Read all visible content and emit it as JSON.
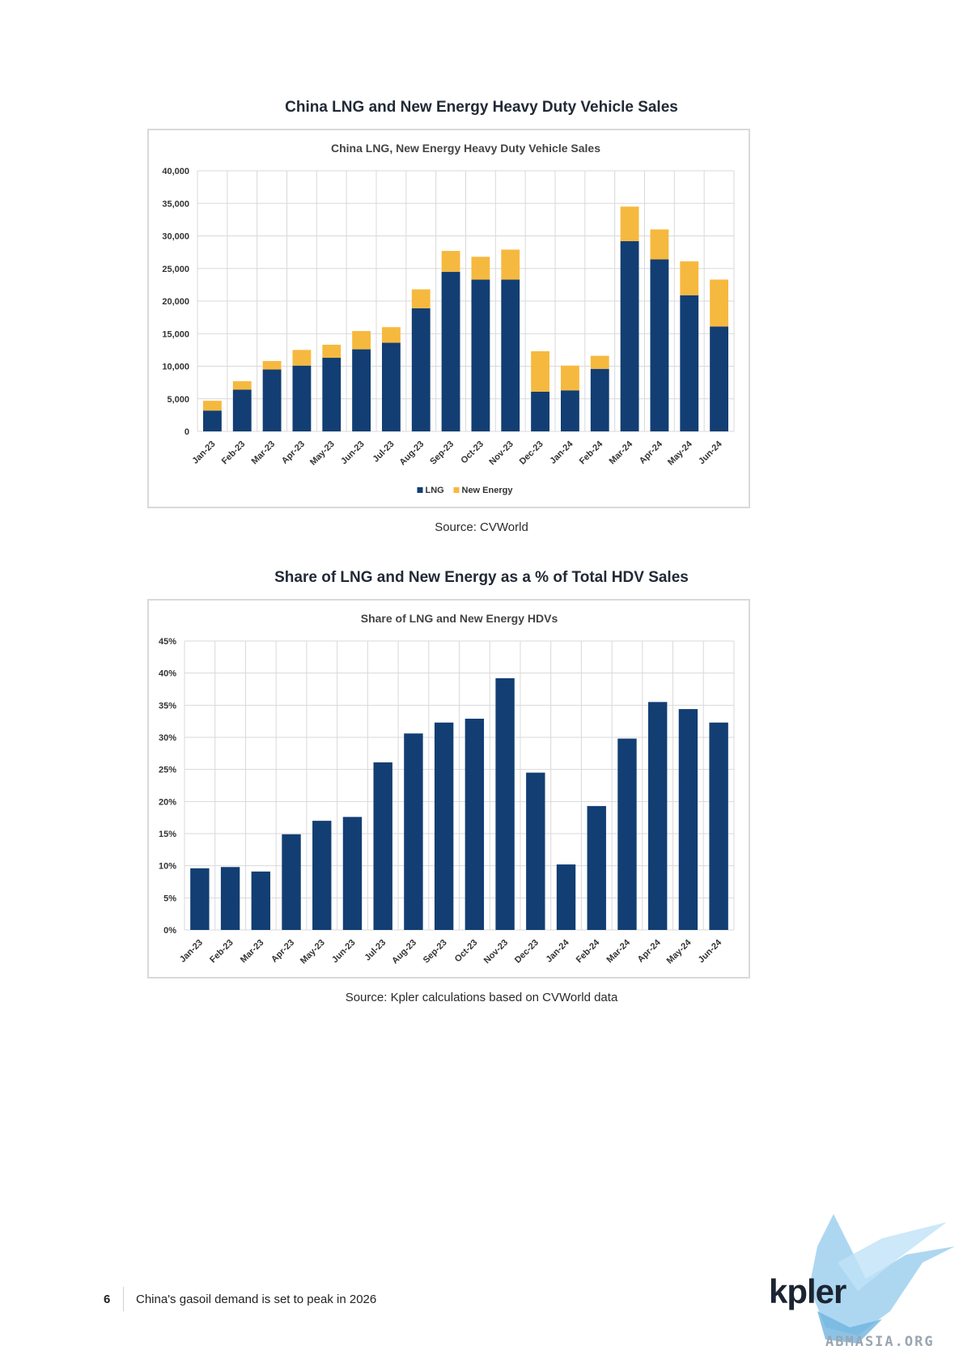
{
  "page": {
    "number": "6",
    "footer_text": "China's gasoil demand is set to peak in 2026",
    "logo_text": "kpler",
    "watermark": "ABMASIA.ORG"
  },
  "figure1": {
    "heading": "China LNG and New Energy Heavy Duty Vehicle Sales",
    "source": "Source: CVWorld"
  },
  "figure2": {
    "heading": "Share of LNG and New Energy as a % of Total HDV Sales",
    "source": "Source: Kpler calculations based on CVWorld data"
  },
  "colors": {
    "lng": "#123e73",
    "new_energy": "#f6b93f",
    "grid": "#d9d9d9",
    "axis_text": "#333333"
  },
  "chart_data": [
    {
      "type": "bar",
      "stacked": true,
      "title": "China LNG, New Energy Heavy Duty Vehicle Sales",
      "categories": [
        "Jan-23",
        "Feb-23",
        "Mar-23",
        "Apr-23",
        "May-23",
        "Jun-23",
        "Jul-23",
        "Aug-23",
        "Sep-23",
        "Oct-23",
        "Nov-23",
        "Dec-23",
        "Jan-24",
        "Feb-24",
        "Mar-24",
        "Apr-24",
        "May-24",
        "Jun-24"
      ],
      "series": [
        {
          "name": "LNG",
          "values": [
            3200,
            6400,
            9500,
            10100,
            11300,
            12600,
            13600,
            18900,
            24500,
            23300,
            23300,
            6100,
            6300,
            9600,
            29200,
            26400,
            20900,
            16100
          ]
        },
        {
          "name": "New Energy",
          "values": [
            1500,
            1300,
            1300,
            2400,
            2000,
            2800,
            2400,
            2900,
            3200,
            3500,
            4600,
            6200,
            3800,
            2000,
            5300,
            4600,
            5200,
            7200
          ]
        }
      ],
      "yticks": [
        "0",
        "5,000",
        "10,000",
        "15,000",
        "20,000",
        "25,000",
        "30,000",
        "35,000",
        "40,000"
      ],
      "ylim": [
        0,
        40000
      ],
      "legend": "bottom",
      "grid": true
    },
    {
      "type": "bar",
      "title": "Share of LNG and New Energy HDVs",
      "categories": [
        "Jan-23",
        "Feb-23",
        "Mar-23",
        "Apr-23",
        "May-23",
        "Jun-23",
        "Jul-23",
        "Aug-23",
        "Sep-23",
        "Oct-23",
        "Nov-23",
        "Dec-23",
        "Jan-24",
        "Feb-24",
        "Mar-24",
        "Apr-24",
        "May-24",
        "Jun-24"
      ],
      "values": [
        9.6,
        9.8,
        9.1,
        14.9,
        17.0,
        17.6,
        26.1,
        30.6,
        32.3,
        32.9,
        39.2,
        24.5,
        10.2,
        19.3,
        29.8,
        35.5,
        34.4,
        32.3
      ],
      "yticks": [
        "0%",
        "5%",
        "10%",
        "15%",
        "20%",
        "25%",
        "30%",
        "35%",
        "40%",
        "45%"
      ],
      "ylim": [
        0,
        45
      ],
      "grid": true
    }
  ]
}
